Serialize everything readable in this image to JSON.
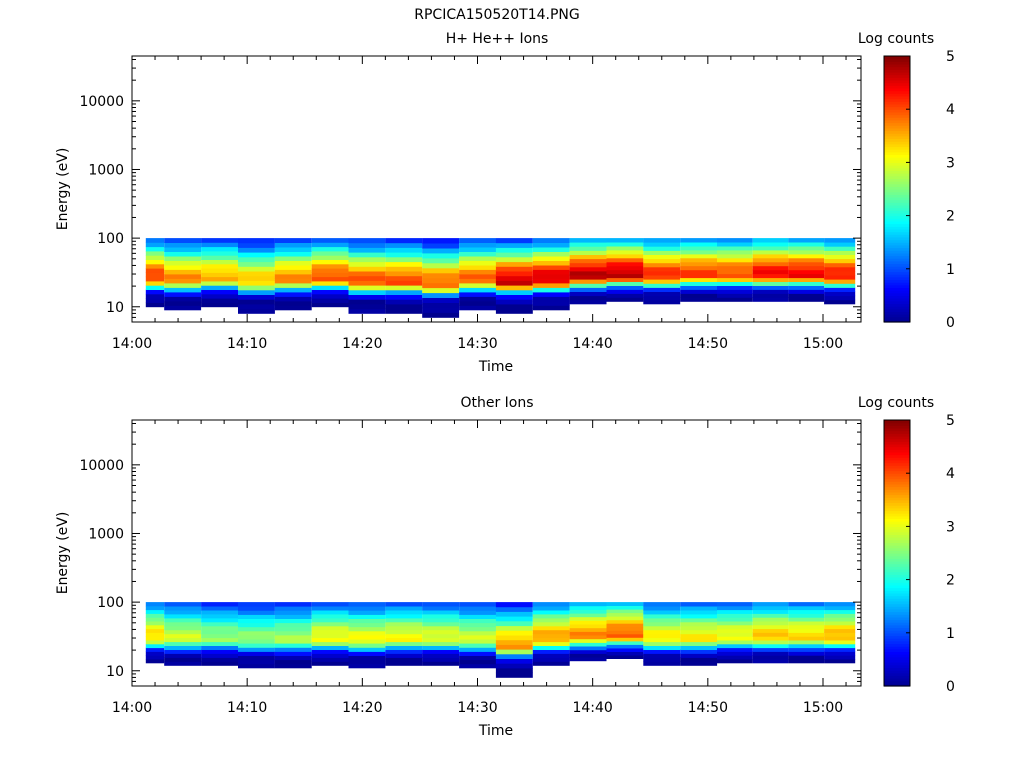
{
  "figure": {
    "title": "RPCICA150520T14.PNG"
  },
  "colors": {
    "axis": "#000000",
    "background": "#ffffff",
    "colormap": [
      "#00008f",
      "#0000ff",
      "#0080ff",
      "#00ffff",
      "#80ff80",
      "#ffff00",
      "#ff8000",
      "#ff0000",
      "#800000"
    ]
  },
  "chart_data": [
    {
      "type": "heatmap",
      "title": "H+ He++ Ions",
      "xlabel": "Time",
      "ylabel": "Energy (eV)",
      "x_ticks": [
        "14:00",
        "14:10",
        "14:20",
        "14:30",
        "14:40",
        "14:50",
        "15:00"
      ],
      "x_tick_minutes": [
        0,
        10,
        20,
        30,
        40,
        50,
        60
      ],
      "xlim_minutes": [
        0,
        63.3
      ],
      "y_scale": "log",
      "y_ticks": [
        "10",
        "100",
        "1000",
        "10000"
      ],
      "y_tick_values": [
        10,
        100,
        1000,
        10000
      ],
      "ylim": [
        6,
        45000
      ],
      "data_time_range_minutes": [
        1.2,
        62.8
      ],
      "data_energy_range_eV": [
        7,
        100
      ],
      "colorbar": {
        "label": "Log counts",
        "range": [
          0,
          5
        ],
        "ticks": [
          "0",
          "1",
          "2",
          "3",
          "4",
          "5"
        ]
      },
      "sweeps": [
        {
          "start": 1.2,
          "end": 2.8,
          "peak_log": 4.1,
          "min_eV": 10
        },
        {
          "start": 2.8,
          "end": 6.0,
          "peak_log": 3.7,
          "min_eV": 9
        },
        {
          "start": 6.0,
          "end": 9.2,
          "peak_log": 3.5,
          "min_eV": 10
        },
        {
          "start": 9.2,
          "end": 12.4,
          "peak_log": 3.4,
          "min_eV": 8
        },
        {
          "start": 12.4,
          "end": 15.6,
          "peak_log": 3.7,
          "min_eV": 9
        },
        {
          "start": 15.6,
          "end": 18.8,
          "peak_log": 4.0,
          "min_eV": 10
        },
        {
          "start": 18.8,
          "end": 22.0,
          "peak_log": 4.0,
          "min_eV": 8
        },
        {
          "start": 22.0,
          "end": 25.2,
          "peak_log": 4.0,
          "min_eV": 8
        },
        {
          "start": 25.2,
          "end": 28.4,
          "peak_log": 3.9,
          "min_eV": 7
        },
        {
          "start": 28.4,
          "end": 31.6,
          "peak_log": 3.9,
          "min_eV": 9
        },
        {
          "start": 31.6,
          "end": 34.8,
          "peak_log": 4.6,
          "min_eV": 8
        },
        {
          "start": 34.8,
          "end": 38.0,
          "peak_log": 4.6,
          "min_eV": 9
        },
        {
          "start": 38.0,
          "end": 41.2,
          "peak_log": 4.7,
          "min_eV": 11
        },
        {
          "start": 41.2,
          "end": 44.4,
          "peak_log": 4.7,
          "min_eV": 12
        },
        {
          "start": 44.4,
          "end": 47.6,
          "peak_log": 4.2,
          "min_eV": 11
        },
        {
          "start": 47.6,
          "end": 50.8,
          "peak_log": 4.1,
          "min_eV": 12
        },
        {
          "start": 50.8,
          "end": 53.9,
          "peak_log": 4.0,
          "min_eV": 12
        },
        {
          "start": 53.9,
          "end": 57.0,
          "peak_log": 4.4,
          "min_eV": 12
        },
        {
          "start": 57.0,
          "end": 60.1,
          "peak_log": 4.4,
          "min_eV": 12
        },
        {
          "start": 60.1,
          "end": 62.8,
          "peak_log": 4.3,
          "min_eV": 11
        }
      ]
    },
    {
      "type": "heatmap",
      "title": "Other Ions",
      "xlabel": "Time",
      "ylabel": "Energy (eV)",
      "x_ticks": [
        "14:00",
        "14:10",
        "14:20",
        "14:30",
        "14:40",
        "14:50",
        "15:00"
      ],
      "x_tick_minutes": [
        0,
        10,
        20,
        30,
        40,
        50,
        60
      ],
      "xlim_minutes": [
        0,
        63.3
      ],
      "y_scale": "log",
      "y_ticks": [
        "10",
        "100",
        "1000",
        "10000"
      ],
      "y_tick_values": [
        10,
        100,
        1000,
        10000
      ],
      "ylim": [
        6,
        45000
      ],
      "data_time_range_minutes": [
        1.2,
        62.8
      ],
      "data_energy_range_eV": [
        8,
        100
      ],
      "colorbar": {
        "label": "Log counts",
        "range": [
          0,
          5
        ],
        "ticks": [
          "0",
          "1",
          "2",
          "3",
          "4",
          "5"
        ]
      },
      "sweeps": [
        {
          "start": 1.2,
          "end": 2.8,
          "peak_log": 3.3,
          "min_eV": 13
        },
        {
          "start": 2.8,
          "end": 6.0,
          "peak_log": 2.9,
          "min_eV": 12
        },
        {
          "start": 6.0,
          "end": 9.2,
          "peak_log": 2.6,
          "min_eV": 12
        },
        {
          "start": 9.2,
          "end": 12.4,
          "peak_log": 2.6,
          "min_eV": 11
        },
        {
          "start": 12.4,
          "end": 15.6,
          "peak_log": 2.7,
          "min_eV": 11
        },
        {
          "start": 15.6,
          "end": 18.8,
          "peak_log": 3.1,
          "min_eV": 12
        },
        {
          "start": 18.8,
          "end": 22.0,
          "peak_log": 3.1,
          "min_eV": 11
        },
        {
          "start": 22.0,
          "end": 25.2,
          "peak_log": 3.1,
          "min_eV": 12
        },
        {
          "start": 25.2,
          "end": 28.4,
          "peak_log": 3.0,
          "min_eV": 12
        },
        {
          "start": 28.4,
          "end": 31.6,
          "peak_log": 2.9,
          "min_eV": 11
        },
        {
          "start": 31.6,
          "end": 34.8,
          "peak_log": 3.6,
          "min_eV": 8
        },
        {
          "start": 34.8,
          "end": 38.0,
          "peak_log": 3.6,
          "min_eV": 12
        },
        {
          "start": 38.0,
          "end": 41.2,
          "peak_log": 3.7,
          "min_eV": 14
        },
        {
          "start": 41.2,
          "end": 44.4,
          "peak_log": 3.9,
          "min_eV": 15
        },
        {
          "start": 44.4,
          "end": 47.6,
          "peak_log": 3.2,
          "min_eV": 12
        },
        {
          "start": 47.6,
          "end": 50.8,
          "peak_log": 3.2,
          "min_eV": 12
        },
        {
          "start": 50.8,
          "end": 53.9,
          "peak_log": 3.1,
          "min_eV": 13
        },
        {
          "start": 53.9,
          "end": 57.0,
          "peak_log": 3.4,
          "min_eV": 13
        },
        {
          "start": 57.0,
          "end": 60.1,
          "peak_log": 3.3,
          "min_eV": 13
        },
        {
          "start": 60.1,
          "end": 62.8,
          "peak_log": 3.5,
          "min_eV": 13
        }
      ]
    }
  ]
}
